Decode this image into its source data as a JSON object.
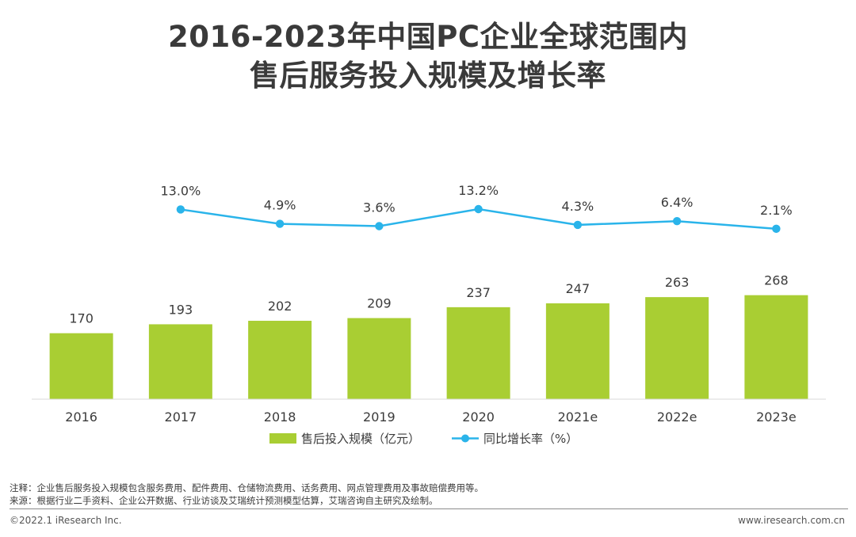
{
  "title": {
    "line1": "2016-2023年中国PC企业全球范围内",
    "line2": "售后服务投入规模及增长率"
  },
  "chart_data": {
    "type": "bar+line",
    "categories": [
      "2016",
      "2017",
      "2018",
      "2019",
      "2020",
      "2021e",
      "2022e",
      "2023e"
    ],
    "series": [
      {
        "name": "售后投入规模（亿元）",
        "type": "bar",
        "color": "#a9ce33",
        "values": [
          170,
          193,
          202,
          209,
          237,
          247,
          263,
          268
        ],
        "labels": [
          "170",
          "193",
          "202",
          "209",
          "237",
          "247",
          "263",
          "268"
        ]
      },
      {
        "name": "同比增长率（%）",
        "type": "line",
        "color": "#2ab4ea",
        "values": [
          null,
          13.0,
          4.9,
          3.6,
          13.2,
          4.3,
          6.4,
          2.1
        ],
        "labels": [
          "",
          "13.0%",
          "4.9%",
          "3.6%",
          "13.2%",
          "4.3%",
          "6.4%",
          "2.1%"
        ]
      }
    ],
    "legend_position": "bottom-center"
  },
  "notes": {
    "note": "注释：企业售后服务投入规模包含服务费用、配件费用、仓储物流费用、话务费用、网点管理费用及事故赔偿费用等。",
    "source": "来源：根据行业二手资料、企业公开数据、行业访谈及艾瑞统计预测模型估算，艾瑞咨询自主研究及绘制。"
  },
  "footer": {
    "copyright": "©2022.1 iResearch Inc.",
    "website": "www.iresearch.com.cn"
  }
}
